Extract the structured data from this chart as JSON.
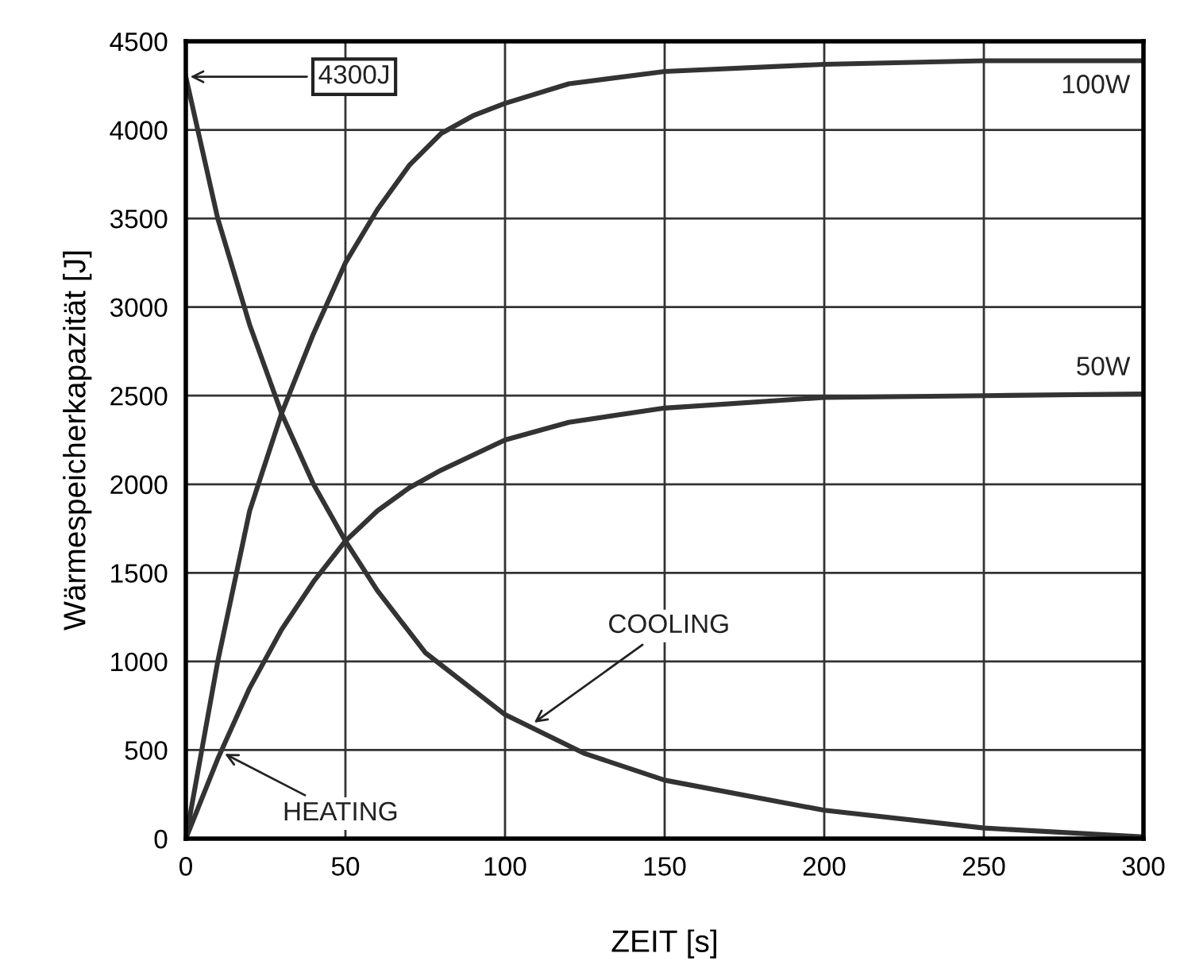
{
  "chart_data": {
    "type": "line",
    "xlabel": "ZEIT [s]",
    "ylabel": "Wärmespeicherkapazität [J]",
    "xlim": [
      0,
      300
    ],
    "xticks": [
      0,
      50,
      100,
      150,
      200,
      250,
      300
    ],
    "ylim": [
      0,
      4500
    ],
    "yticks": [
      0,
      500,
      1000,
      1500,
      2000,
      2500,
      3000,
      3500,
      4000,
      4500
    ],
    "grid": true,
    "legend": false,
    "marker": "none",
    "line_style": "solid",
    "series": [
      {
        "name": "100W",
        "color": "#333333",
        "x": [
          0,
          10,
          20,
          30,
          40,
          50,
          60,
          70,
          80,
          90,
          100,
          120,
          150,
          200,
          250,
          300
        ],
        "values": [
          0,
          1000,
          1850,
          2400,
          2850,
          3250,
          3550,
          3800,
          3980,
          4080,
          4150,
          4260,
          4330,
          4370,
          4390,
          4390
        ]
      },
      {
        "name": "50W",
        "color": "#333333",
        "x": [
          0,
          10,
          20,
          30,
          40,
          50,
          60,
          70,
          80,
          100,
          120,
          150,
          200,
          250,
          300
        ],
        "values": [
          0,
          450,
          850,
          1180,
          1450,
          1680,
          1850,
          1980,
          2080,
          2250,
          2350,
          2430,
          2490,
          2500,
          2510
        ]
      },
      {
        "color": "#333333",
        "x": [
          0,
          10,
          20,
          30,
          40,
          50,
          60,
          75,
          100,
          125,
          150,
          200,
          250,
          300
        ],
        "values": [
          4300,
          3500,
          2900,
          2400,
          2000,
          1680,
          1400,
          1050,
          700,
          480,
          330,
          160,
          60,
          10
        ]
      }
    ],
    "annotations": [
      {
        "text": "4300J",
        "x": 0,
        "y": 4300
      },
      {
        "text": "COOLING",
        "x": 108,
        "y": 640
      },
      {
        "text": "HEATING",
        "x": 11,
        "y": 490
      }
    ]
  }
}
